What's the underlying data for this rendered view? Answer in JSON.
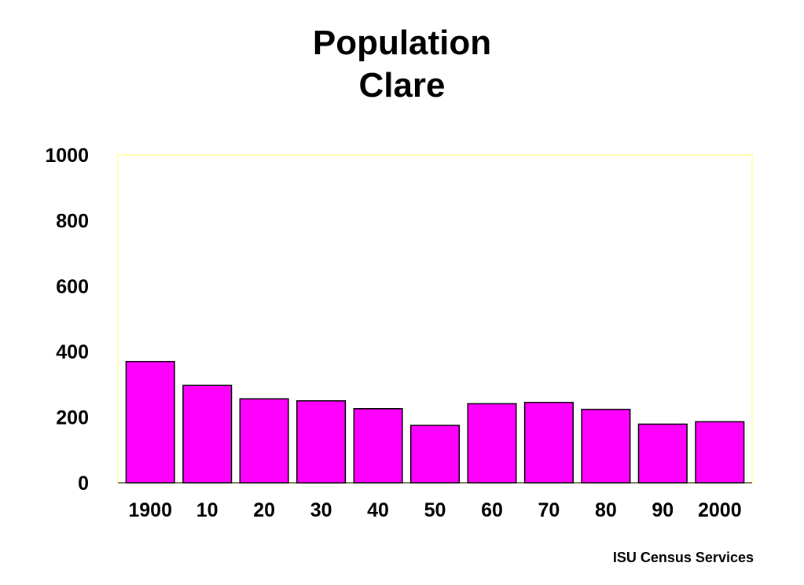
{
  "chart_data": {
    "type": "bar",
    "title": "Population",
    "subtitle": "Clare",
    "categories": [
      "1900",
      "10",
      "20",
      "30",
      "40",
      "50",
      "60",
      "70",
      "80",
      "90",
      "2000"
    ],
    "values": [
      370,
      297,
      256,
      250,
      226,
      175,
      241,
      245,
      224,
      179,
      186
    ],
    "ylim": [
      0,
      1000
    ],
    "yticks": [
      0,
      200,
      400,
      600,
      800,
      1000
    ],
    "grid": false,
    "legend": "none",
    "colors": {
      "bar": "#ff00ff",
      "bar_outline": "#000000",
      "frame": "#ffff99",
      "axis": "#000000"
    }
  },
  "footer": {
    "credit": "ISU Census Services"
  }
}
